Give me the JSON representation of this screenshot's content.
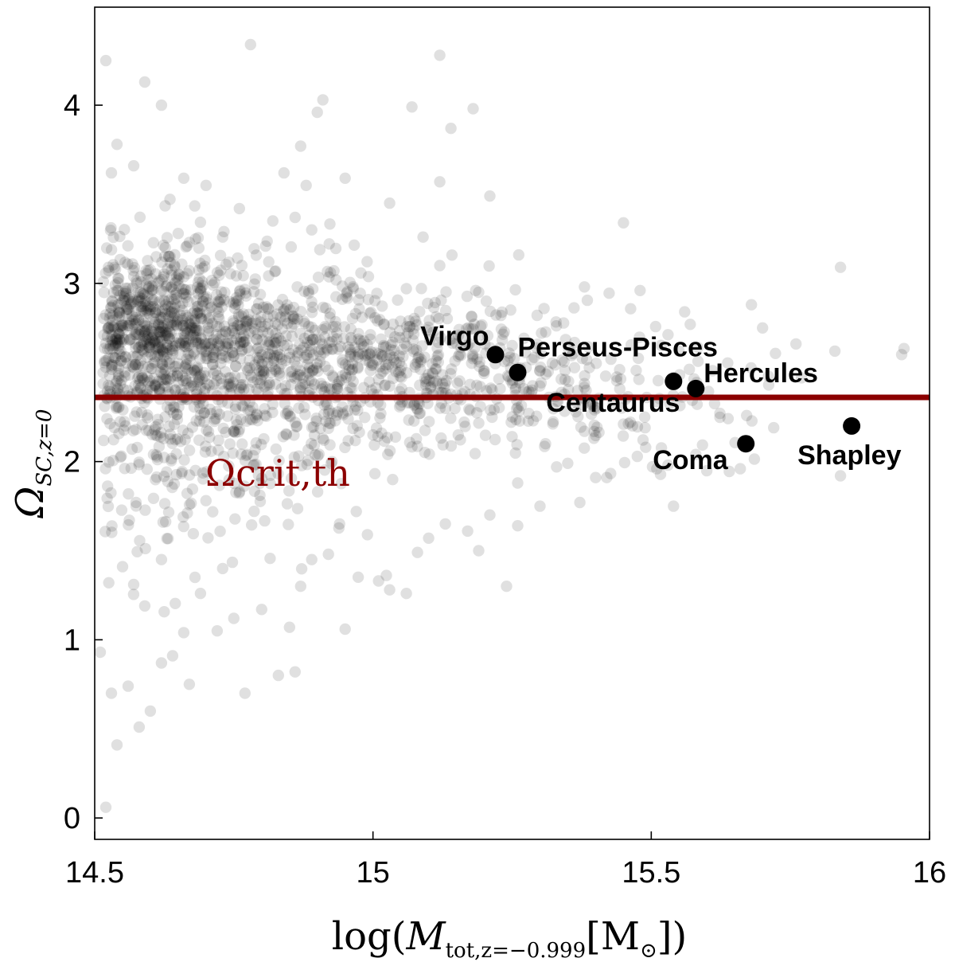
{
  "chart_data": {
    "type": "scatter",
    "xlabel_main": "log(",
    "xlabel_symbol": "M",
    "xlabel_subscript": "tot,z=−0.999",
    "xlabel_bracket": "[M",
    "xlabel_sun": "⊙",
    "xlabel_close": "])",
    "ylabel_symbol": "Ω",
    "ylabel_subscript": "SC,z=0",
    "xlim": [
      14.5,
      16.0
    ],
    "ylim": [
      -0.12,
      4.55
    ],
    "x_ticks": [
      "14.5",
      "15",
      "15.5",
      "16"
    ],
    "x_tick_values": [
      14.5,
      15.0,
      15.5,
      16.0
    ],
    "y_ticks": [
      "0",
      "1",
      "2",
      "3",
      "4"
    ],
    "y_tick_values": [
      0,
      1,
      2,
      3,
      4
    ],
    "threshold": {
      "value": 2.36,
      "label": "Ωcrit,th",
      "color": "#8b0000"
    },
    "background_color": "#000000",
    "named_series": [
      {
        "name": "Virgo",
        "x": 15.22,
        "y": 2.6
      },
      {
        "name": "Perseus-Pisces",
        "x": 15.26,
        "y": 2.5
      },
      {
        "name": "Centaurus",
        "x": 15.54,
        "y": 2.45
      },
      {
        "name": "Hercules",
        "x": 15.58,
        "y": 2.41
      },
      {
        "name": "Coma",
        "x": 15.67,
        "y": 2.1
      },
      {
        "name": "Shapley",
        "x": 15.86,
        "y": 2.2
      }
    ],
    "background_points": [
      [
        15.12,
        4.28
      ],
      [
        14.52,
        4.25
      ],
      [
        14.59,
        4.13
      ],
      [
        14.62,
        4.0
      ],
      [
        14.78,
        4.34
      ],
      [
        14.9,
        3.96
      ],
      [
        14.91,
        4.03
      ],
      [
        14.54,
        3.78
      ],
      [
        14.53,
        3.62
      ],
      [
        14.57,
        3.66
      ],
      [
        14.84,
        3.62
      ],
      [
        14.87,
        3.77
      ],
      [
        15.14,
        3.87
      ],
      [
        15.21,
        3.49
      ],
      [
        15.18,
        3.98
      ],
      [
        15.07,
        3.99
      ],
      [
        15.12,
        3.57
      ],
      [
        14.88,
        3.55
      ],
      [
        14.76,
        3.42
      ],
      [
        14.7,
        3.55
      ],
      [
        14.66,
        3.59
      ],
      [
        15.03,
        3.45
      ],
      [
        14.95,
        3.59
      ],
      [
        14.89,
        3.3
      ],
      [
        14.86,
        3.37
      ],
      [
        14.82,
        3.35
      ],
      [
        14.73,
        3.26
      ],
      [
        14.67,
        3.23
      ],
      [
        14.65,
        3.28
      ],
      [
        15.09,
        3.26
      ],
      [
        15.12,
        3.1
      ],
      [
        15.45,
        3.34
      ],
      [
        15.19,
        2.95
      ],
      [
        15.23,
        2.82
      ],
      [
        15.38,
        2.98
      ],
      [
        15.56,
        2.84
      ],
      [
        15.48,
        2.96
      ],
      [
        15.57,
        2.77
      ],
      [
        15.68,
        2.88
      ],
      [
        15.7,
        2.75
      ],
      [
        15.55,
        2.62
      ],
      [
        15.61,
        2.51
      ],
      [
        15.76,
        2.66
      ],
      [
        15.77,
        2.47
      ],
      [
        15.83,
        2.62
      ],
      [
        15.84,
        3.09
      ],
      [
        15.95,
        2.6
      ],
      [
        15.84,
        1.92
      ],
      [
        15.72,
        2.19
      ],
      [
        15.66,
        1.96
      ],
      [
        15.58,
        2.04
      ],
      [
        15.54,
        1.75
      ],
      [
        15.53,
        1.98
      ],
      [
        15.4,
        1.91
      ],
      [
        15.33,
        1.97
      ],
      [
        15.3,
        1.75
      ],
      [
        15.26,
        1.88
      ],
      [
        15.21,
        1.7
      ],
      [
        15.19,
        1.5
      ],
      [
        15.17,
        1.61
      ],
      [
        15.13,
        1.65
      ],
      [
        15.1,
        1.57
      ],
      [
        15.08,
        1.49
      ],
      [
        15.06,
        1.26
      ],
      [
        15.03,
        1.28
      ],
      [
        15.01,
        1.33
      ],
      [
        14.99,
        1.59
      ],
      [
        14.97,
        1.72
      ],
      [
        14.94,
        1.65
      ],
      [
        14.92,
        1.48
      ],
      [
        14.89,
        1.45
      ],
      [
        14.87,
        1.3
      ],
      [
        14.85,
        1.07
      ],
      [
        14.8,
        1.17
      ],
      [
        14.77,
        0.7
      ],
      [
        14.75,
        1.12
      ],
      [
        14.72,
        1.05
      ],
      [
        14.69,
        1.26
      ],
      [
        14.67,
        0.75
      ],
      [
        14.64,
        0.91
      ],
      [
        14.62,
        0.87
      ],
      [
        14.6,
        0.6
      ],
      [
        14.58,
        0.51
      ],
      [
        14.56,
        0.74
      ],
      [
        14.54,
        0.41
      ],
      [
        14.53,
        0.7
      ],
      [
        14.51,
        0.93
      ],
      [
        14.52,
        0.06
      ],
      [
        14.86,
        0.82
      ],
      [
        14.83,
        0.8
      ],
      [
        14.66,
        1.04
      ],
      [
        14.59,
        1.19
      ],
      [
        14.57,
        1.31
      ],
      [
        14.55,
        1.41
      ],
      [
        14.62,
        1.45
      ],
      [
        14.73,
        1.4
      ],
      [
        14.95,
        1.06
      ],
      [
        15.24,
        1.3
      ],
      [
        15.26,
        1.64
      ],
      [
        15.35,
        1.99
      ],
      [
        15.42,
        1.91
      ],
      [
        15.49,
        2.08
      ],
      [
        15.51,
        1.96
      ],
      [
        15.38,
        2.17
      ],
      [
        15.31,
        2.1
      ],
      [
        15.25,
        2.14
      ],
      [
        15.28,
        2.27
      ],
      [
        15.45,
        2.21
      ]
    ],
    "density_clusters": [
      {
        "center": [
          14.61,
          2.72
        ],
        "count": 620,
        "sx": 0.07,
        "sy": 0.24
      },
      {
        "center": [
          14.8,
          2.62
        ],
        "count": 520,
        "sx": 0.12,
        "sy": 0.24
      },
      {
        "center": [
          15.02,
          2.52
        ],
        "count": 330,
        "sx": 0.12,
        "sy": 0.22
      },
      {
        "center": [
          15.25,
          2.45
        ],
        "count": 190,
        "sx": 0.11,
        "sy": 0.22
      },
      {
        "center": [
          15.5,
          2.38
        ],
        "count": 80,
        "sx": 0.12,
        "sy": 0.2
      },
      {
        "center": [
          14.62,
          2.1
        ],
        "count": 160,
        "sx": 0.07,
        "sy": 0.33
      },
      {
        "center": [
          14.82,
          2.1
        ],
        "count": 110,
        "sx": 0.1,
        "sy": 0.33
      }
    ],
    "grid": false,
    "legend": "none"
  }
}
